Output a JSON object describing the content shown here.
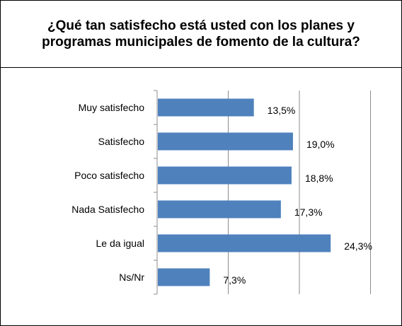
{
  "title": "¿Qué tan satisfecho está usted con los planes y programas municipales de fomento de la cultura?",
  "chart_data": {
    "type": "bar",
    "orientation": "horizontal",
    "categories": [
      "Muy satisfecho",
      "Satisfecho",
      "Poco satisfecho",
      "Nada Satisfecho",
      "Le da igual",
      "Ns/Nr"
    ],
    "values": [
      13.5,
      19.0,
      18.8,
      17.3,
      24.3,
      7.3
    ],
    "data_labels": [
      "13,5%",
      "19,0%",
      "18,8%",
      "17,3%",
      "24,3%",
      "7,3%"
    ],
    "xlim": [
      0,
      30
    ],
    "grid": true,
    "bar_color": "#4F81BD"
  }
}
